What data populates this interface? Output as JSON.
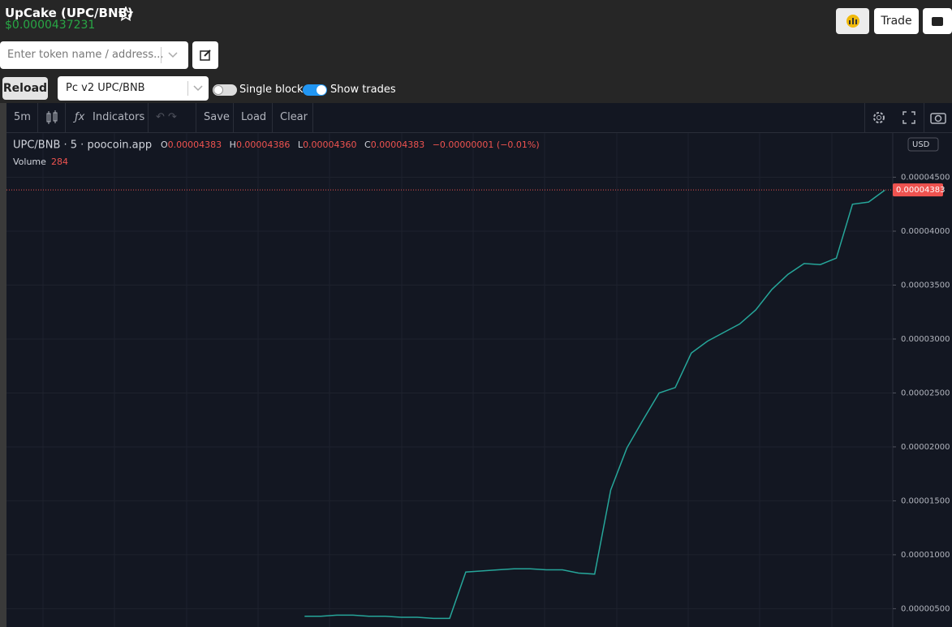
{
  "header": {
    "title": "UpCake (UPC/BNB)",
    "price": "$0.0000437231",
    "search_placeholder": "Enter token name / address...",
    "trade_button": "Trade",
    "reload_button": "Reload",
    "pair_select": "Pc v2 UPC/BNB",
    "single_blocks": "Single blocks",
    "show_trades": "Show trades"
  },
  "toolbar": {
    "interval": "5m",
    "indicators": "Indicators",
    "save": "Save",
    "load": "Load",
    "clear": "Clear"
  },
  "legend": {
    "symbol": "UPC/BNB · 5 · poocoin.app",
    "open_label": "O",
    "open": "0.00004383",
    "high_label": "H",
    "high": "0.00004386",
    "low_label": "L",
    "low": "0.00004360",
    "close_label": "C",
    "close": "0.00004383",
    "change": "−0.00000001 (−0.01%)",
    "volume_label": "Volume",
    "volume": "284"
  },
  "currency": "USD",
  "chart_data": {
    "type": "line",
    "color": "#26a69a",
    "categories": [
      null,
      null,
      null,
      null,
      null,
      null,
      null,
      null,
      null,
      null,
      null,
      null,
      null,
      null,
      null,
      null,
      null,
      null,
      null,
      null,
      null,
      null,
      null,
      null,
      null,
      null,
      null,
      null,
      null,
      null,
      null,
      null,
      null,
      null,
      null,
      null,
      null,
      null,
      null,
      null,
      null,
      null,
      null,
      null,
      null,
      null,
      null,
      null,
      null,
      null,
      null,
      null,
      null,
      null,
      null
    ],
    "values": [
      null,
      null,
      null,
      null,
      null,
      null,
      null,
      null,
      null,
      null,
      null,
      null,
      null,
      null,
      null,
      null,
      null,
      null,
      4.3e-06,
      4.3e-06,
      4.4e-06,
      4.4e-06,
      4.3e-06,
      4.3e-06,
      4.2e-06,
      4.2e-06,
      4.1e-06,
      4.1e-06,
      8.4e-06,
      8.5e-06,
      8.6e-06,
      8.7e-06,
      8.7e-06,
      8.6e-06,
      8.6e-06,
      8.3e-06,
      8.2e-06,
      1.6e-05,
      1.99e-05,
      2.25e-05,
      2.5e-05,
      2.55e-05,
      2.87e-05,
      2.98e-05,
      3.06e-05,
      3.14e-05,
      3.27e-05,
      3.46e-05,
      3.6e-05,
      3.7e-05,
      3.69e-05,
      3.75e-05,
      4.25e-05,
      4.27e-05,
      4.38e-05
    ],
    "ylim": [
      3.3e-06,
      4.91e-05
    ],
    "yticks": [
      {
        "value": 5e-06,
        "label": "0.00000500"
      },
      {
        "value": 1e-05,
        "label": "0.00001000"
      },
      {
        "value": 1.5e-05,
        "label": "0.00001500"
      },
      {
        "value": 2e-05,
        "label": "0.00002000"
      },
      {
        "value": 2.5e-05,
        "label": "0.00002500"
      },
      {
        "value": 3e-05,
        "label": "0.00003000"
      },
      {
        "value": 3.5e-05,
        "label": "0.00003500"
      },
      {
        "value": 4e-05,
        "label": "0.00004000"
      },
      {
        "value": 4.5e-05,
        "label": "0.00004500"
      }
    ],
    "price_line": {
      "value": 4.383e-05,
      "label": "0.00004383"
    },
    "price_line_color": "#ef5350",
    "grid": true
  }
}
